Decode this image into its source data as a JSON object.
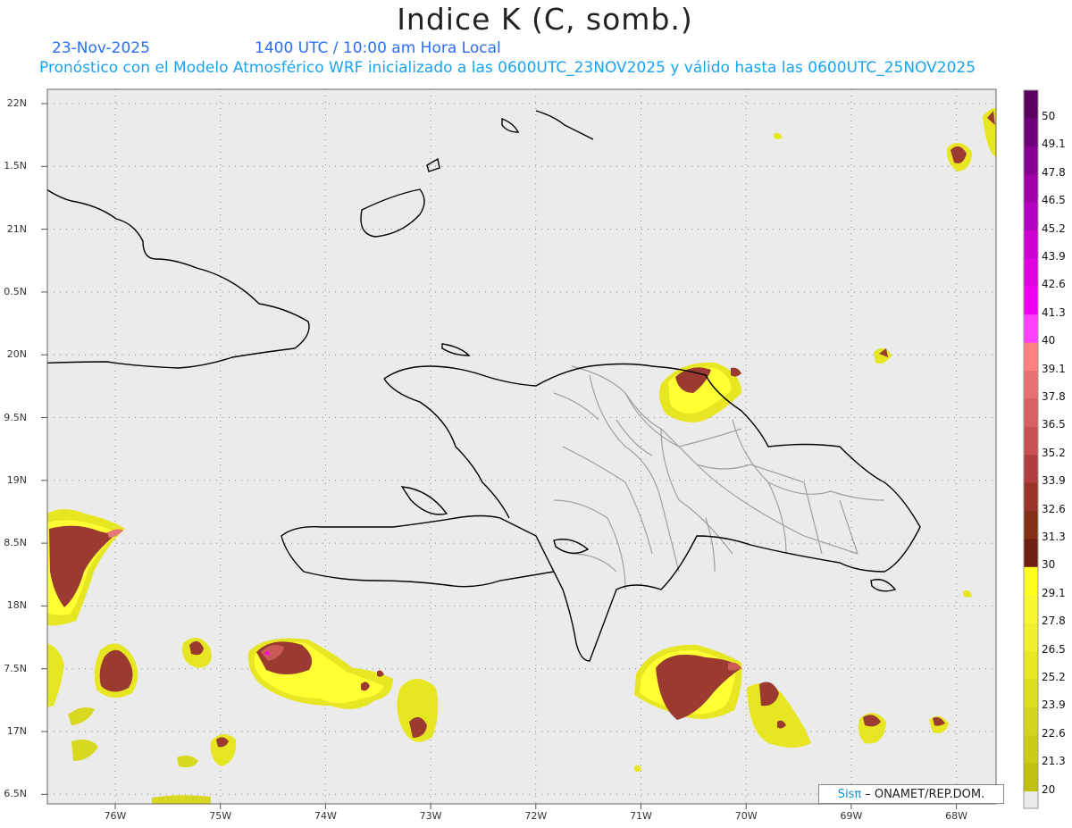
{
  "title": "Indice K (C, somb.)",
  "date": "23-Nov-2025",
  "time": "1400 UTC / 10:00 am Hora Local",
  "forecast_text": "Pronóstico con el Modelo Atmosférico WRF inicializado a las 0600UTC_23NOV2025 y válido hasta las  0600UTC_25NOV2025",
  "credit": {
    "brand": "Sisπ",
    "text": "– ONAMET/REP.DOM."
  },
  "axes": {
    "lat_labels": [
      "22N",
      "1.5N",
      "21N",
      "0.5N",
      "20N",
      "9.5N",
      "19N",
      "8.5N",
      "18N",
      "7.5N",
      "17N",
      "6.5N"
    ],
    "lon_labels": [
      "76W",
      "75W",
      "74W",
      "73W",
      "72W",
      "71W",
      "70W",
      "69W",
      "68W"
    ]
  },
  "colorbar": {
    "labels": [
      "50",
      "49.1",
      "47.8",
      "46.5",
      "45.2",
      "43.9",
      "42.6",
      "41.3",
      "40",
      "39.1",
      "37.8",
      "36.5",
      "35.2",
      "33.9",
      "32.6",
      "31.3",
      "30",
      "29.1",
      "27.8",
      "26.5",
      "25.2",
      "23.9",
      "22.6",
      "21.3",
      "20"
    ],
    "colors": [
      "#5c0060",
      "#6e007a",
      "#880092",
      "#a000aa",
      "#b400c0",
      "#cc00d0",
      "#e000e0",
      "#f000f0",
      "#ff40ff",
      "#ff8080",
      "#e87070",
      "#d86060",
      "#c85050",
      "#b04040",
      "#983428",
      "#843018",
      "#702010",
      "#ffff20",
      "#f8f830",
      "#f0f030",
      "#e8e820",
      "#dede20",
      "#d4d420",
      "#cccc18",
      "#c0c010"
    ]
  },
  "colors": {
    "ocean": "#ebebeb",
    "coast": "#000000",
    "borders": "#a0a0a0",
    "k20": "#c6c414",
    "k25": "#e6e622",
    "k29": "#ffff33",
    "k31": "#9a3a30",
    "k36": "#c85c55",
    "k39": "#e87878",
    "k41": "#ff00ff"
  }
}
